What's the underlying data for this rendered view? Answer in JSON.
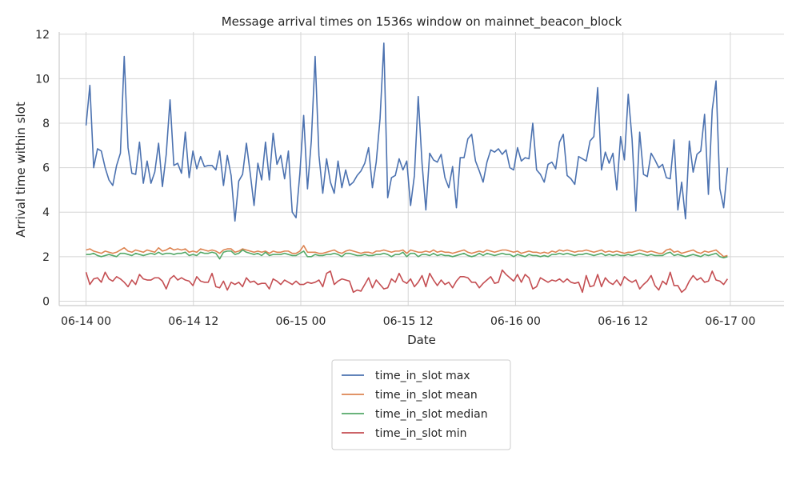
{
  "chart_data": {
    "type": "line",
    "title": "Message arrival times on 1536s window on mainnet_beacon_block",
    "xlabel": "Date",
    "ylabel": "Arrival time within slot",
    "xlim_hours": [
      -3,
      78
    ],
    "ylim": [
      -0.2,
      12.1
    ],
    "yticks": [
      0,
      2,
      4,
      6,
      8,
      10,
      12
    ],
    "xticks": [
      {
        "hour": 0,
        "label": "06-14 00"
      },
      {
        "hour": 12,
        "label": "06-14 12"
      },
      {
        "hour": 24,
        "label": "06-15 00"
      },
      {
        "hour": 36,
        "label": "06-15 12"
      },
      {
        "hour": 48,
        "label": "06-16 00"
      },
      {
        "hour": 60,
        "label": "06-16 12"
      },
      {
        "hour": 72,
        "label": "06-17 00"
      }
    ],
    "x_start_hour": 0,
    "x_step_hours": 0.4267,
    "series": [
      {
        "name": "time_in_slot max",
        "color": "#4c72b0",
        "values": [
          7.9,
          9.7,
          6.0,
          6.85,
          6.75,
          6.0,
          5.45,
          5.2,
          6.1,
          6.65,
          11.0,
          6.9,
          5.75,
          5.7,
          7.15,
          5.3,
          6.3,
          5.3,
          5.8,
          7.1,
          5.15,
          6.6,
          9.05,
          6.1,
          6.2,
          5.75,
          7.6,
          5.55,
          6.75,
          5.95,
          6.5,
          6.05,
          6.1,
          6.1,
          5.9,
          6.75,
          5.2,
          6.55,
          5.65,
          3.6,
          5.4,
          5.7,
          7.1,
          5.75,
          4.3,
          6.2,
          5.45,
          7.15,
          5.45,
          7.55,
          6.15,
          6.55,
          5.5,
          6.75,
          4.0,
          3.75,
          5.75,
          8.35,
          5.05,
          7.2,
          11.0,
          6.55,
          4.85,
          6.4,
          5.35,
          4.85,
          6.3,
          5.1,
          5.9,
          5.2,
          5.35,
          5.65,
          5.85,
          6.2,
          6.9,
          5.1,
          6.25,
          8.2,
          11.6,
          4.65,
          5.55,
          5.65,
          6.4,
          5.9,
          6.3,
          4.3,
          5.65,
          9.2,
          6.2,
          4.1,
          6.65,
          6.35,
          6.25,
          6.6,
          5.55,
          5.1,
          6.05,
          4.2,
          6.45,
          6.45,
          7.3,
          7.5,
          6.3,
          5.85,
          5.35,
          6.25,
          6.8,
          6.7,
          6.85,
          6.6,
          6.8,
          6.0,
          5.9,
          6.9,
          6.3,
          6.45,
          6.4,
          8.0,
          5.9,
          5.7,
          5.35,
          6.15,
          6.25,
          5.95,
          7.15,
          7.5,
          5.65,
          5.5,
          5.25,
          6.5,
          6.4,
          6.3,
          7.2,
          7.4,
          9.6,
          5.9,
          6.7,
          6.2,
          6.65,
          5.0,
          7.4,
          6.35,
          9.3,
          7.3,
          4.05,
          7.6,
          5.7,
          5.6,
          6.65,
          6.35,
          6.0,
          6.15,
          5.55,
          5.5,
          7.25,
          4.1,
          5.35,
          3.7,
          7.2,
          5.8,
          6.6,
          6.75,
          8.4,
          4.8,
          8.6,
          9.9,
          5.05,
          4.2,
          6.0
        ]
      },
      {
        "name": "time_in_slot mean",
        "color": "#dd8452",
        "values": [
          2.3,
          2.35,
          2.25,
          2.2,
          2.15,
          2.25,
          2.2,
          2.15,
          2.2,
          2.3,
          2.4,
          2.25,
          2.2,
          2.3,
          2.25,
          2.2,
          2.3,
          2.25,
          2.2,
          2.4,
          2.25,
          2.3,
          2.4,
          2.3,
          2.35,
          2.3,
          2.35,
          2.2,
          2.25,
          2.2,
          2.35,
          2.3,
          2.25,
          2.3,
          2.25,
          2.15,
          2.3,
          2.35,
          2.35,
          2.2,
          2.25,
          2.35,
          2.3,
          2.25,
          2.2,
          2.25,
          2.2,
          2.25,
          2.15,
          2.25,
          2.2,
          2.2,
          2.25,
          2.25,
          2.15,
          2.15,
          2.25,
          2.5,
          2.2,
          2.2,
          2.2,
          2.15,
          2.15,
          2.2,
          2.25,
          2.3,
          2.2,
          2.15,
          2.25,
          2.3,
          2.25,
          2.2,
          2.15,
          2.2,
          2.2,
          2.15,
          2.25,
          2.25,
          2.3,
          2.25,
          2.2,
          2.25,
          2.25,
          2.3,
          2.15,
          2.3,
          2.25,
          2.2,
          2.2,
          2.25,
          2.2,
          2.3,
          2.2,
          2.25,
          2.2,
          2.2,
          2.15,
          2.2,
          2.25,
          2.3,
          2.2,
          2.15,
          2.2,
          2.25,
          2.2,
          2.3,
          2.25,
          2.2,
          2.25,
          2.3,
          2.3,
          2.25,
          2.2,
          2.25,
          2.15,
          2.2,
          2.25,
          2.2,
          2.2,
          2.15,
          2.2,
          2.15,
          2.25,
          2.2,
          2.3,
          2.25,
          2.3,
          2.25,
          2.2,
          2.25,
          2.25,
          2.3,
          2.25,
          2.2,
          2.25,
          2.3,
          2.2,
          2.25,
          2.2,
          2.25,
          2.2,
          2.15,
          2.2,
          2.2,
          2.25,
          2.3,
          2.25,
          2.2,
          2.25,
          2.2,
          2.15,
          2.15,
          2.3,
          2.35,
          2.2,
          2.25,
          2.15,
          2.2,
          2.25,
          2.3,
          2.2,
          2.15,
          2.25,
          2.2,
          2.25,
          2.3,
          2.15,
          2.0,
          2.05
        ]
      },
      {
        "name": "time_in_slot median",
        "color": "#55a868",
        "values": [
          2.1,
          2.1,
          2.15,
          2.05,
          2.0,
          2.05,
          2.1,
          2.05,
          2.0,
          2.15,
          2.15,
          2.1,
          2.05,
          2.15,
          2.1,
          2.05,
          2.1,
          2.15,
          2.1,
          2.2,
          2.1,
          2.15,
          2.15,
          2.1,
          2.15,
          2.15,
          2.2,
          2.05,
          2.1,
          2.05,
          2.2,
          2.15,
          2.15,
          2.2,
          2.15,
          1.9,
          2.2,
          2.25,
          2.25,
          2.1,
          2.15,
          2.3,
          2.2,
          2.15,
          2.1,
          2.15,
          2.05,
          2.2,
          2.05,
          2.1,
          2.1,
          2.1,
          2.15,
          2.1,
          2.05,
          2.05,
          2.15,
          2.25,
          2.0,
          2.0,
          2.1,
          2.05,
          2.05,
          2.1,
          2.1,
          2.15,
          2.1,
          2.0,
          2.15,
          2.15,
          2.1,
          2.05,
          2.05,
          2.1,
          2.05,
          2.05,
          2.1,
          2.1,
          2.15,
          2.1,
          2.0,
          2.1,
          2.1,
          2.2,
          2.0,
          2.15,
          2.15,
          2.0,
          2.1,
          2.1,
          2.05,
          2.15,
          2.05,
          2.1,
          2.05,
          2.05,
          2.0,
          2.05,
          2.1,
          2.15,
          2.05,
          2.0,
          2.05,
          2.15,
          2.05,
          2.15,
          2.1,
          2.05,
          2.1,
          2.15,
          2.1,
          2.1,
          2.0,
          2.1,
          2.05,
          2.0,
          2.1,
          2.05,
          2.05,
          2.0,
          2.05,
          2.0,
          2.1,
          2.1,
          2.15,
          2.1,
          2.15,
          2.1,
          2.05,
          2.1,
          2.1,
          2.15,
          2.1,
          2.05,
          2.1,
          2.15,
          2.05,
          2.1,
          2.05,
          2.1,
          2.05,
          2.05,
          2.1,
          2.05,
          2.1,
          2.15,
          2.1,
          2.05,
          2.1,
          2.05,
          2.05,
          2.05,
          2.15,
          2.2,
          2.05,
          2.1,
          2.05,
          2.0,
          2.05,
          2.1,
          2.05,
          2.0,
          2.1,
          2.05,
          2.1,
          2.15,
          2.0,
          1.95,
          2.0
        ]
      },
      {
        "name": "time_in_slot min",
        "color": "#c44e52",
        "values": [
          1.3,
          0.75,
          1.0,
          1.05,
          0.85,
          1.3,
          1.0,
          0.9,
          1.1,
          1.0,
          0.85,
          0.65,
          0.95,
          0.75,
          1.2,
          1.0,
          0.95,
          0.95,
          1.05,
          1.05,
          0.9,
          0.55,
          1.0,
          1.15,
          0.95,
          1.05,
          0.95,
          0.9,
          0.7,
          1.1,
          0.9,
          0.85,
          0.85,
          1.25,
          0.65,
          0.6,
          0.9,
          0.5,
          0.85,
          0.75,
          0.85,
          0.65,
          1.05,
          0.85,
          0.9,
          0.75,
          0.8,
          0.8,
          0.55,
          1.0,
          0.9,
          0.75,
          0.95,
          0.85,
          0.75,
          0.9,
          0.75,
          0.75,
          0.85,
          0.8,
          0.85,
          0.95,
          0.65,
          1.25,
          1.35,
          0.75,
          0.9,
          1.0,
          0.95,
          0.9,
          0.4,
          0.5,
          0.45,
          0.75,
          1.05,
          0.6,
          0.95,
          0.75,
          0.55,
          0.6,
          1.0,
          0.85,
          1.25,
          0.9,
          0.8,
          1.0,
          0.65,
          0.85,
          1.15,
          0.65,
          1.25,
          0.95,
          0.7,
          0.95,
          0.75,
          0.85,
          0.6,
          0.9,
          1.1,
          1.1,
          1.05,
          0.85,
          0.85,
          0.6,
          0.8,
          0.95,
          1.1,
          0.8,
          0.85,
          1.4,
          1.2,
          1.05,
          0.9,
          1.2,
          0.85,
          1.2,
          1.05,
          0.55,
          0.65,
          1.05,
          0.95,
          0.85,
          0.95,
          0.9,
          1.0,
          0.85,
          1.0,
          0.85,
          0.8,
          0.85,
          0.4,
          1.15,
          0.65,
          0.7,
          1.2,
          0.65,
          1.05,
          0.85,
          0.75,
          0.95,
          0.7,
          1.1,
          0.95,
          0.85,
          0.95,
          0.55,
          0.75,
          0.9,
          1.15,
          0.7,
          0.5,
          0.9,
          0.75,
          1.3,
          0.7,
          0.7,
          0.4,
          0.55,
          0.9,
          1.15,
          0.95,
          1.05,
          0.85,
          0.9,
          1.35,
          0.95,
          0.9,
          0.75,
          1.0
        ]
      }
    ]
  }
}
